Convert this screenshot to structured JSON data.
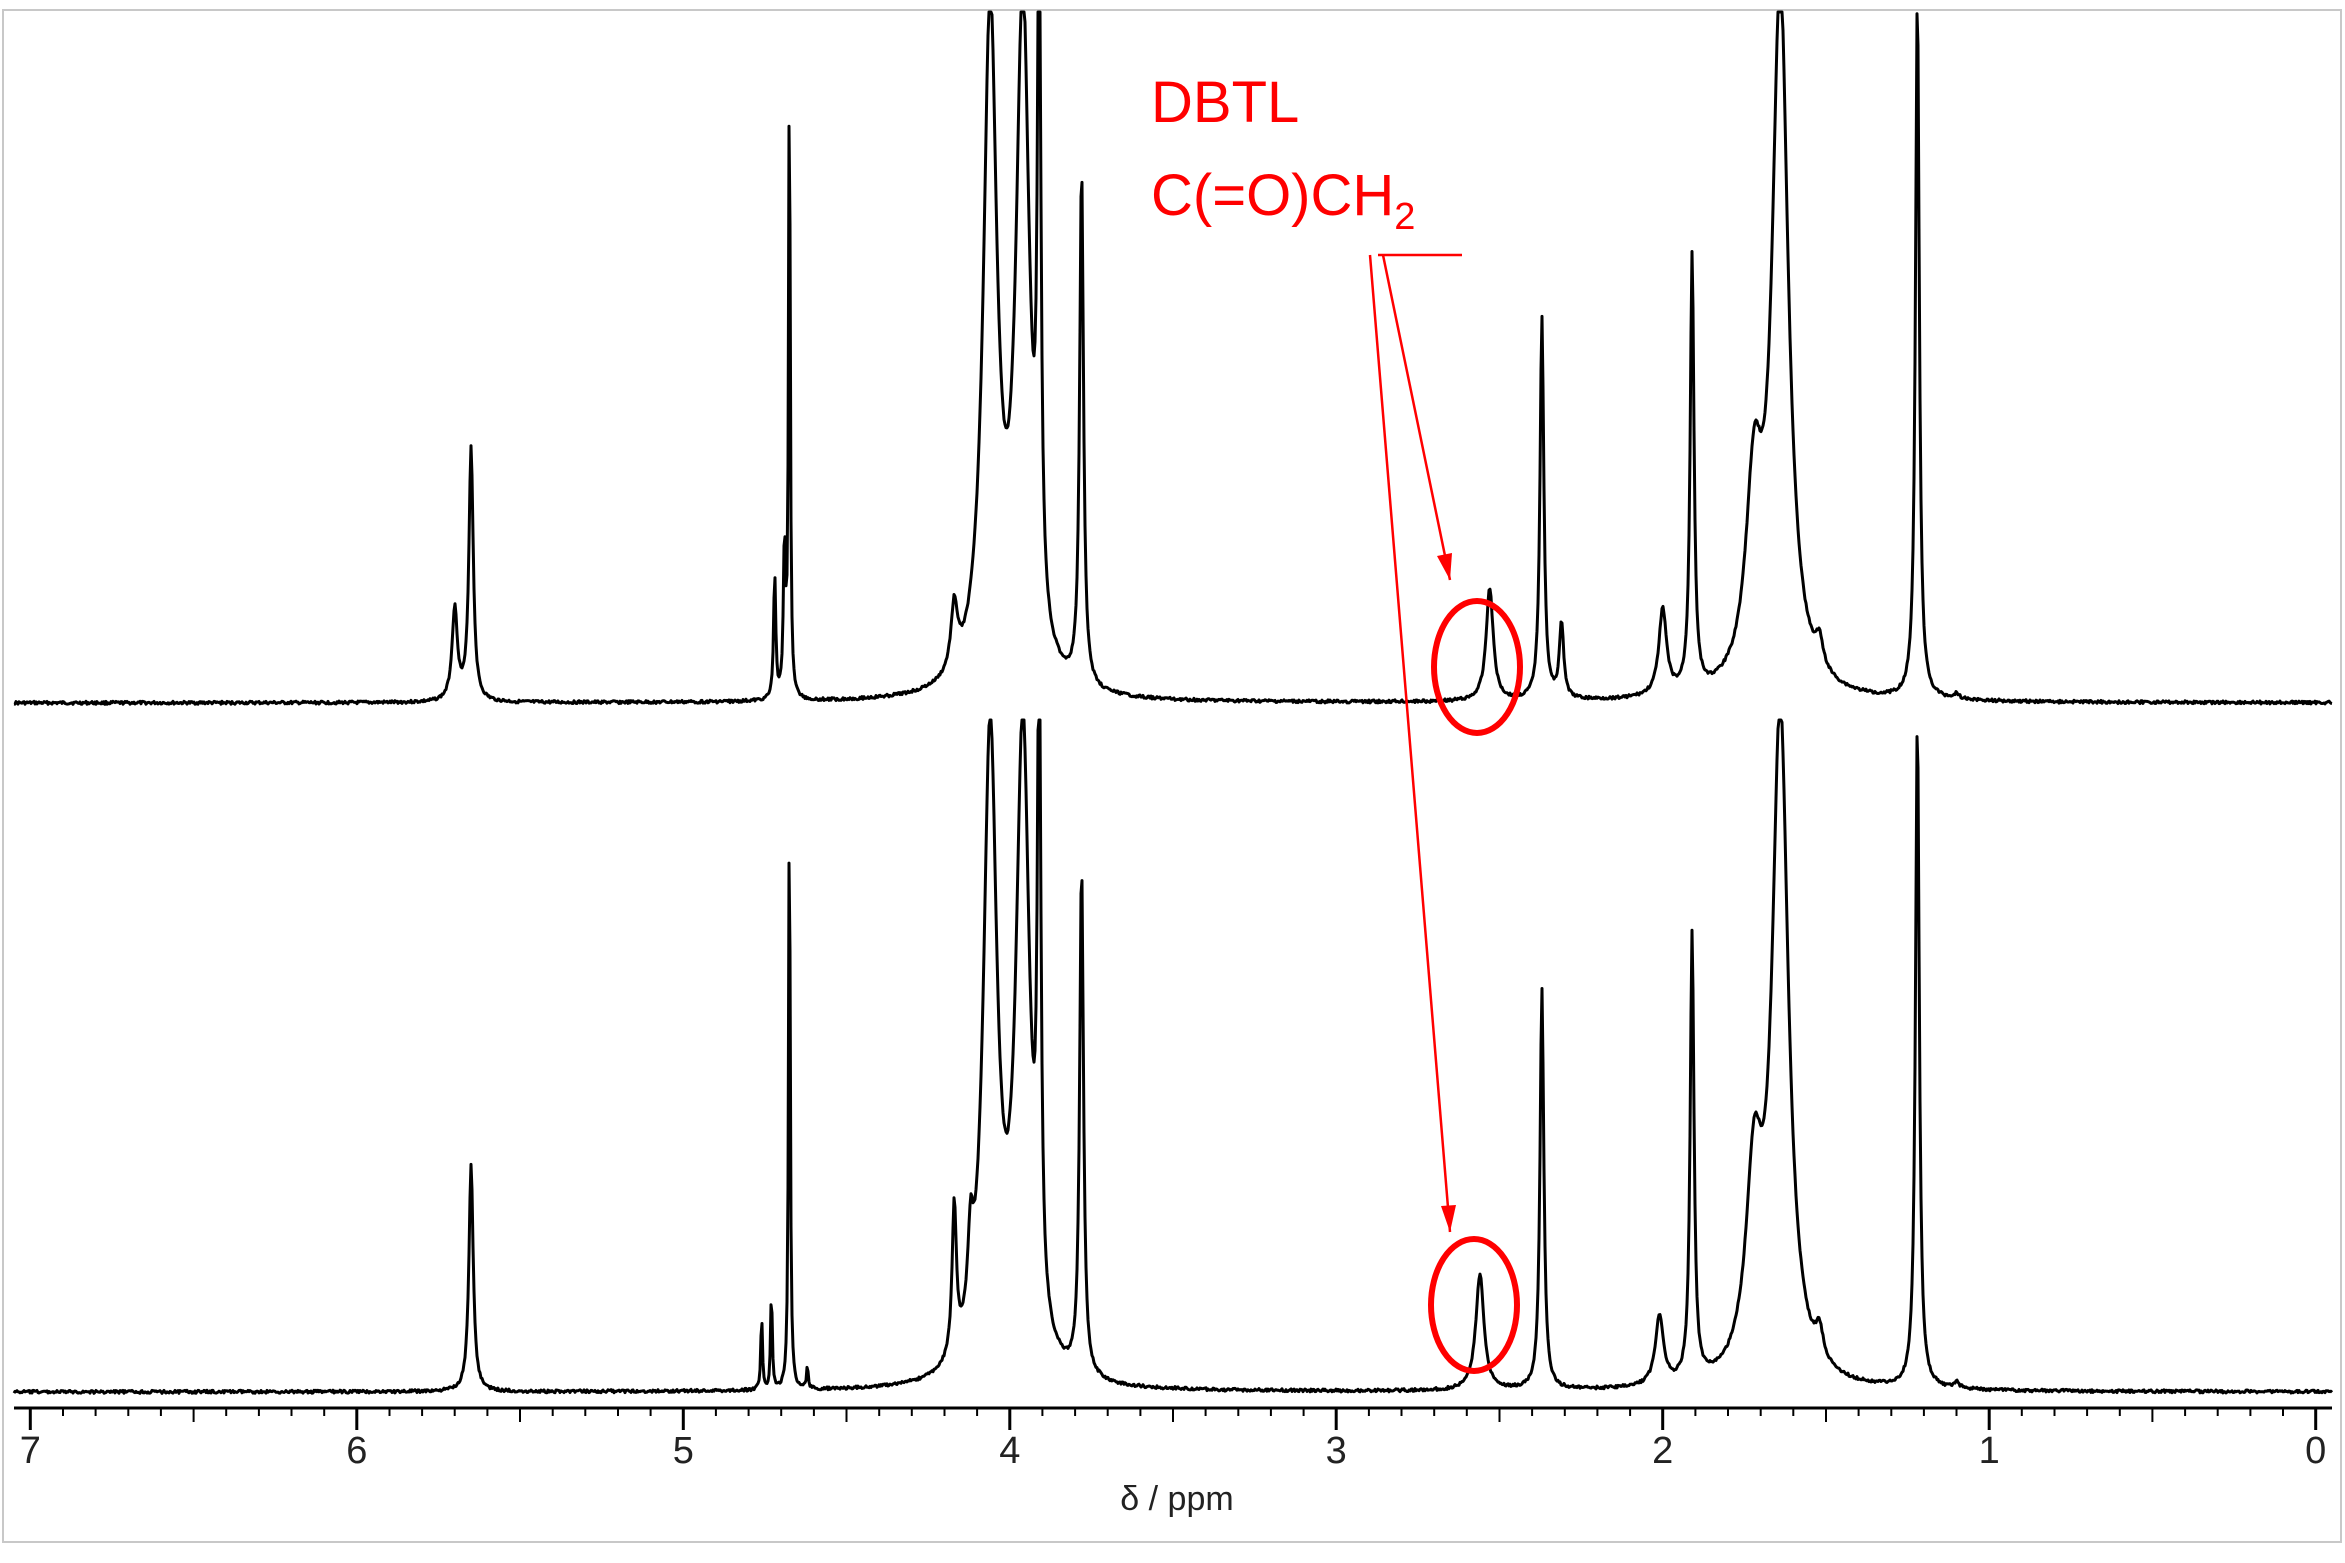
{
  "chart_data": {
    "type": "line",
    "title": "",
    "xlabel": "δ / ppm",
    "ylabel": "",
    "xlim": [
      7.05,
      -0.05
    ],
    "x_reversed": true,
    "grid": false,
    "tick_labels": [
      "7",
      "6",
      "5",
      "4",
      "3",
      "2",
      "1",
      "0"
    ],
    "ticks": [
      7,
      6,
      5,
      4,
      3,
      2,
      1,
      0
    ],
    "traces": [
      "upper",
      "lower"
    ],
    "annotation": {
      "lines": [
        "DBTL",
        "C(=O)CH"
      ],
      "subscript": "2",
      "color": "#ff0000",
      "peak_ppm": 2.55
    },
    "peaks_upper": [
      {
        "ppm": 5.7,
        "h": 0.17,
        "w": 0.01
      },
      {
        "ppm": 5.65,
        "h": 0.47,
        "w": 0.008
      },
      {
        "ppm": 4.72,
        "h": 0.23,
        "w": 0.004
      },
      {
        "ppm": 4.69,
        "h": 0.28,
        "w": 0.004
      },
      {
        "ppm": 4.675,
        "h": 1.2,
        "w": 0.003
      },
      {
        "ppm": 4.17,
        "h": 0.12,
        "w": 0.012
      },
      {
        "ppm": 4.06,
        "h": 1.25,
        "w": 0.025
      },
      {
        "ppm": 3.96,
        "h": 1.25,
        "w": 0.025
      },
      {
        "ppm": 3.91,
        "h": 1.3,
        "w": 0.006
      },
      {
        "ppm": 3.78,
        "h": 0.96,
        "w": 0.007
      },
      {
        "ppm": 2.53,
        "h": 0.21,
        "w": 0.013
      },
      {
        "ppm": 2.37,
        "h": 0.71,
        "w": 0.007
      },
      {
        "ppm": 2.31,
        "h": 0.14,
        "w": 0.008
      },
      {
        "ppm": 2.0,
        "h": 0.16,
        "w": 0.014
      },
      {
        "ppm": 1.91,
        "h": 0.81,
        "w": 0.007
      },
      {
        "ppm": 1.72,
        "h": 0.35,
        "w": 0.03
      },
      {
        "ppm": 1.64,
        "h": 1.3,
        "w": 0.03
      },
      {
        "ppm": 1.52,
        "h": 0.05,
        "w": 0.014
      },
      {
        "ppm": 1.22,
        "h": 1.3,
        "w": 0.007
      },
      {
        "ppm": 1.1,
        "h": 0.01,
        "w": 0.01
      }
    ],
    "peaks_lower": [
      {
        "ppm": 5.65,
        "h": 0.39,
        "w": 0.008
      },
      {
        "ppm": 4.76,
        "h": 0.13,
        "w": 0.003
      },
      {
        "ppm": 4.73,
        "h": 0.17,
        "w": 0.003
      },
      {
        "ppm": 4.675,
        "h": 1.05,
        "w": 0.003
      },
      {
        "ppm": 4.62,
        "h": 0.04,
        "w": 0.003
      },
      {
        "ppm": 4.17,
        "h": 0.26,
        "w": 0.008
      },
      {
        "ppm": 4.12,
        "h": 0.14,
        "w": 0.01
      },
      {
        "ppm": 4.06,
        "h": 1.1,
        "w": 0.025
      },
      {
        "ppm": 3.96,
        "h": 1.1,
        "w": 0.025
      },
      {
        "ppm": 3.91,
        "h": 1.15,
        "w": 0.006
      },
      {
        "ppm": 3.78,
        "h": 0.88,
        "w": 0.007
      },
      {
        "ppm": 2.56,
        "h": 0.2,
        "w": 0.015
      },
      {
        "ppm": 2.37,
        "h": 0.69,
        "w": 0.007
      },
      {
        "ppm": 2.01,
        "h": 0.12,
        "w": 0.015
      },
      {
        "ppm": 1.91,
        "h": 0.77,
        "w": 0.007
      },
      {
        "ppm": 1.72,
        "h": 0.33,
        "w": 0.03
      },
      {
        "ppm": 1.64,
        "h": 1.15,
        "w": 0.03
      },
      {
        "ppm": 1.52,
        "h": 0.05,
        "w": 0.014
      },
      {
        "ppm": 1.22,
        "h": 1.15,
        "w": 0.007
      },
      {
        "ppm": 1.1,
        "h": 0.01,
        "w": 0.01
      }
    ]
  }
}
